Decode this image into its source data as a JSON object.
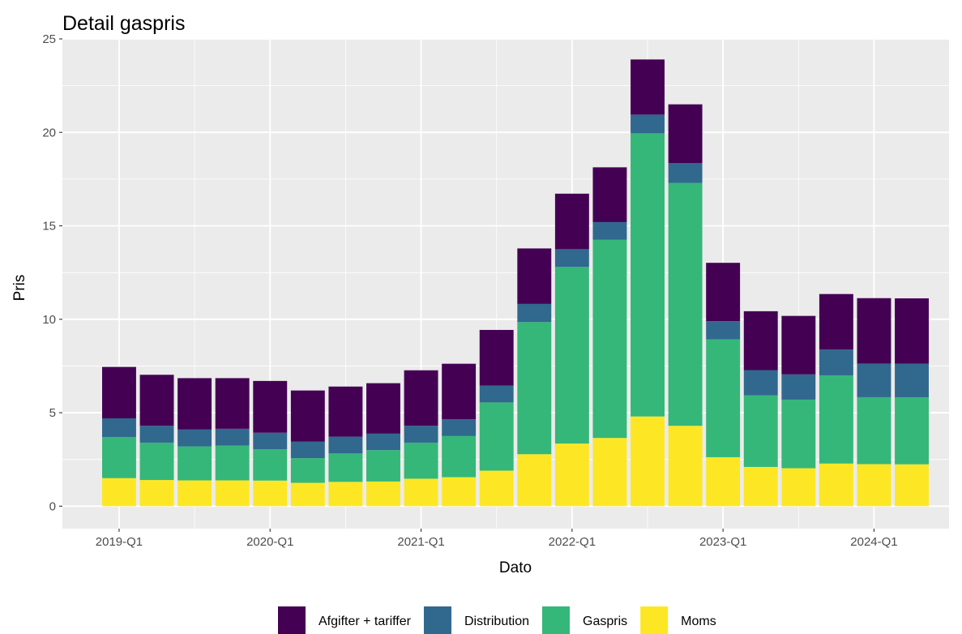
{
  "chart_data": {
    "type": "bar",
    "stacked": true,
    "title": "Detail gaspris",
    "xlabel": "Dato",
    "ylabel": "Pris",
    "ylim": [
      -1.2,
      25
    ],
    "yticks": [
      0,
      5,
      10,
      15,
      20,
      25
    ],
    "x_tick_labels": [
      {
        "label": "2019-Q1",
        "index": 0.5
      },
      {
        "label": "2020-Q1",
        "index": 4.5
      },
      {
        "label": "2021-Q1",
        "index": 8.5
      },
      {
        "label": "2022-Q1",
        "index": 12.5
      },
      {
        "label": "2023-Q1",
        "index": 16.5
      },
      {
        "label": "2024-Q1",
        "index": 20.5
      }
    ],
    "grid": true,
    "legend_position": "bottom",
    "categories": [
      "1",
      "2",
      "3",
      "4",
      "5",
      "6",
      "7",
      "8",
      "9",
      "10",
      "11",
      "12",
      "13",
      "14",
      "15",
      "16",
      "17",
      "18",
      "19",
      "20",
      "21",
      "22"
    ],
    "series": [
      {
        "name": "Moms",
        "color": "#FDE725",
        "values": [
          1.5,
          1.4,
          1.38,
          1.38,
          1.37,
          1.25,
          1.3,
          1.32,
          1.47,
          1.55,
          1.9,
          2.78,
          3.35,
          3.65,
          4.8,
          4.3,
          2.62,
          2.1,
          2.03,
          2.28,
          2.25,
          2.24
        ]
      },
      {
        "name": "Gaspris",
        "color": "#35B779",
        "values": [
          2.2,
          2.0,
          1.82,
          1.86,
          1.68,
          1.32,
          1.52,
          1.68,
          1.93,
          2.2,
          3.65,
          7.07,
          9.45,
          10.6,
          15.15,
          13.0,
          6.3,
          3.83,
          3.67,
          4.72,
          3.58,
          3.58
        ]
      },
      {
        "name": "Distribution",
        "color": "#31688E",
        "values": [
          1.0,
          0.9,
          0.9,
          0.9,
          0.88,
          0.88,
          0.9,
          0.88,
          0.9,
          0.9,
          0.9,
          0.97,
          0.95,
          0.95,
          1.0,
          1.05,
          0.98,
          1.35,
          1.35,
          1.38,
          1.8,
          1.8
        ]
      },
      {
        "name": "Afgifter + tariffer",
        "color": "#440154",
        "values": [
          2.75,
          2.73,
          2.75,
          2.71,
          2.77,
          2.74,
          2.68,
          2.7,
          2.97,
          2.97,
          2.98,
          2.97,
          2.97,
          2.93,
          2.95,
          3.15,
          3.12,
          3.15,
          3.13,
          2.97,
          3.5,
          3.5
        ]
      }
    ],
    "legend_order": [
      "Afgifter + tariffer",
      "Distribution",
      "Gaspris",
      "Moms"
    ]
  }
}
